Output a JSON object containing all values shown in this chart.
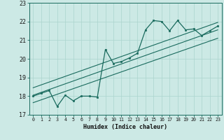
{
  "xlabel": "Humidex (Indice chaleur)",
  "ylim": [
    17,
    23
  ],
  "xlim": [
    -0.5,
    23.5
  ],
  "y_ticks": [
    17,
    18,
    19,
    20,
    21,
    22,
    23
  ],
  "x_ticks": [
    0,
    1,
    2,
    3,
    4,
    5,
    6,
    7,
    8,
    9,
    10,
    11,
    12,
    13,
    14,
    15,
    16,
    17,
    18,
    19,
    20,
    21,
    22,
    23
  ],
  "bg_color": "#cce9e5",
  "line_color": "#1a6b5e",
  "grid_color": "#aad4ce",
  "curve_x": [
    0,
    1,
    2,
    3,
    4,
    5,
    6,
    7,
    8,
    9,
    10,
    11,
    12,
    13,
    14,
    15,
    16,
    17,
    18,
    19,
    20,
    21,
    22,
    23
  ],
  "curve_y": [
    18.0,
    18.15,
    18.3,
    17.45,
    18.05,
    17.75,
    18.0,
    18.0,
    17.95,
    20.5,
    19.75,
    19.85,
    20.05,
    20.3,
    21.55,
    22.05,
    22.0,
    21.5,
    22.05,
    21.55,
    21.6,
    21.25,
    21.5,
    21.75
  ],
  "line1_x": [
    0,
    23
  ],
  "line1_y": [
    18.05,
    21.55
  ],
  "line2_x": [
    0,
    23
  ],
  "line2_y": [
    18.45,
    21.95
  ],
  "line3_x": [
    0,
    23
  ],
  "line3_y": [
    17.65,
    21.1
  ],
  "marker_x": [
    0,
    1,
    2,
    3,
    4,
    5,
    6,
    7,
    8,
    9,
    10,
    11,
    12,
    13,
    14,
    15,
    16,
    17,
    18,
    19,
    20,
    21,
    22,
    23
  ],
  "marker_y": [
    18.0,
    18.15,
    18.3,
    17.45,
    18.05,
    17.75,
    18.0,
    18.0,
    17.95,
    20.5,
    19.75,
    19.85,
    20.05,
    20.3,
    21.55,
    22.05,
    22.0,
    21.5,
    22.05,
    21.55,
    21.6,
    21.25,
    21.5,
    21.75
  ],
  "xlabel_fontsize": 6.0,
  "ytick_fontsize": 6.0,
  "xtick_fontsize": 4.8
}
